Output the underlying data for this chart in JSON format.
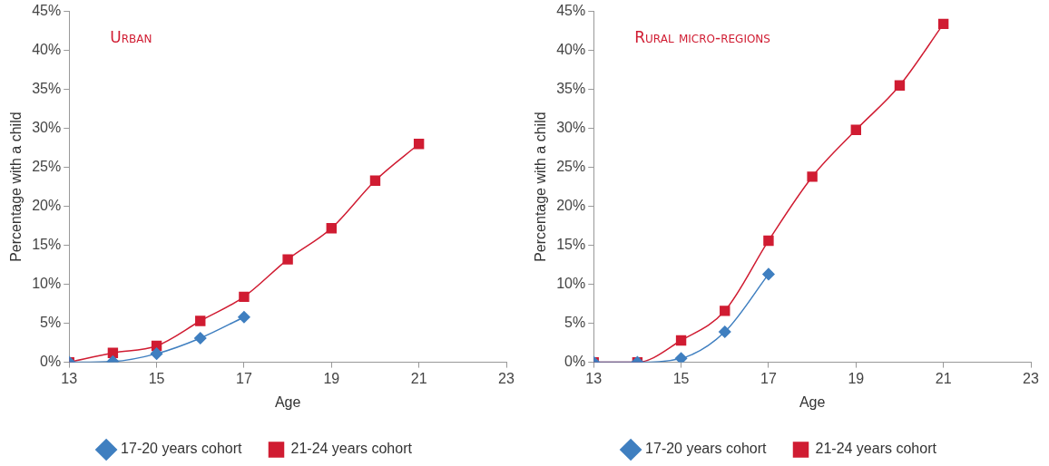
{
  "chart_data": [
    {
      "type": "line",
      "title": "Urban",
      "xlabel": "Age",
      "ylabel": "Percentage with a child",
      "x": [
        13,
        14,
        15,
        16,
        17,
        18,
        19,
        20,
        21
      ],
      "xlim": [
        13,
        23
      ],
      "xticks": [
        13,
        15,
        17,
        19,
        21,
        23
      ],
      "ylim": [
        0,
        45
      ],
      "yticks": [
        {
          "value": 0,
          "label": "0%"
        },
        {
          "value": 5,
          "label": "5%"
        },
        {
          "value": 10,
          "label": "10%"
        },
        {
          "value": 15,
          "label": "15%"
        },
        {
          "value": 20,
          "label": "20%"
        },
        {
          "value": 25,
          "label": "25%"
        },
        {
          "value": 30,
          "label": "30%"
        },
        {
          "value": 35,
          "label": "35%"
        },
        {
          "value": 40,
          "label": "40%"
        },
        {
          "value": 45,
          "label": "45%"
        }
      ],
      "grid": false,
      "legend": "bottom",
      "series": [
        {
          "name": "17-20 years cohort",
          "color": "#3f7fc0",
          "marker": "diamond",
          "values": [
            0,
            0.1,
            1.1,
            3.1,
            5.8,
            null,
            null,
            null,
            null
          ]
        },
        {
          "name": "21-24 years cohort",
          "color": "#d01c32",
          "marker": "square",
          "values": [
            0,
            1.2,
            2.1,
            5.3,
            8.4,
            13.2,
            17.2,
            23.3,
            28.0
          ]
        }
      ]
    },
    {
      "type": "line",
      "title": "Rural micro-regions",
      "xlabel": "Age",
      "ylabel": "Percentage with a child",
      "x": [
        13,
        14,
        15,
        16,
        17,
        18,
        19,
        20,
        21
      ],
      "xlim": [
        13,
        23
      ],
      "xticks": [
        13,
        15,
        17,
        19,
        21,
        23
      ],
      "ylim": [
        0,
        45
      ],
      "yticks": [
        {
          "value": 0,
          "label": "0%"
        },
        {
          "value": 5,
          "label": "5%"
        },
        {
          "value": 10,
          "label": "10%"
        },
        {
          "value": 15,
          "label": "15%"
        },
        {
          "value": 20,
          "label": "20%"
        },
        {
          "value": 25,
          "label": "25%"
        },
        {
          "value": 30,
          "label": "30%"
        },
        {
          "value": 35,
          "label": "35%"
        },
        {
          "value": 40,
          "label": "40%"
        },
        {
          "value": 45,
          "label": "45%"
        }
      ],
      "grid": false,
      "legend": "bottom",
      "series": [
        {
          "name": "17-20 years cohort",
          "color": "#3f7fc0",
          "marker": "diamond",
          "values": [
            0,
            0,
            0.5,
            3.9,
            11.3,
            null,
            null,
            null,
            null
          ]
        },
        {
          "name": "21-24 years cohort",
          "color": "#d01c32",
          "marker": "square",
          "values": [
            0,
            0,
            2.8,
            6.6,
            15.6,
            23.8,
            29.8,
            35.5,
            43.4
          ]
        }
      ]
    }
  ]
}
